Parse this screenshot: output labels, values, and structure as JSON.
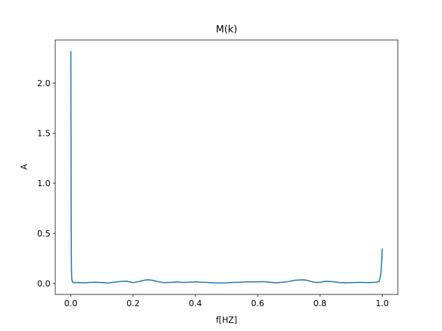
{
  "chart_data": {
    "type": "line",
    "title": "M(k)",
    "xlabel": "f[HZ]",
    "ylabel": "A",
    "xlim": [
      -0.05,
      1.05
    ],
    "ylim": [
      -0.11,
      2.43
    ],
    "xticks": [
      0.0,
      0.2,
      0.4,
      0.6,
      0.8,
      1.0
    ],
    "xtick_labels": [
      "0.0",
      "0.2",
      "0.4",
      "0.6",
      "0.8",
      "1.0"
    ],
    "yticks": [
      0.0,
      0.5,
      1.0,
      1.5,
      2.0
    ],
    "ytick_labels": [
      "0.0",
      "0.5",
      "1.0",
      "1.5",
      "2.0"
    ],
    "grid": false,
    "series": [
      {
        "color": "#1f77b4",
        "x": [
          0.0,
          0.0005,
          0.001,
          0.0015,
          0.002,
          0.003,
          0.005,
          0.01,
          0.02,
          0.04,
          0.06,
          0.08,
          0.1,
          0.12,
          0.14,
          0.16,
          0.18,
          0.2,
          0.22,
          0.24,
          0.25,
          0.26,
          0.28,
          0.3,
          0.32,
          0.34,
          0.36,
          0.38,
          0.4,
          0.42,
          0.44,
          0.46,
          0.48,
          0.5,
          0.52,
          0.54,
          0.56,
          0.58,
          0.6,
          0.62,
          0.64,
          0.66,
          0.68,
          0.7,
          0.72,
          0.74,
          0.75,
          0.76,
          0.78,
          0.8,
          0.82,
          0.84,
          0.86,
          0.88,
          0.9,
          0.92,
          0.94,
          0.96,
          0.98,
          0.99,
          0.995,
          0.998,
          1.0
        ],
        "y": [
          2.32,
          1.6,
          0.8,
          0.36,
          0.15,
          0.05,
          0.015,
          0.008,
          0.01,
          0.006,
          0.01,
          0.012,
          0.008,
          0.004,
          0.012,
          0.02,
          0.022,
          0.008,
          0.02,
          0.034,
          0.036,
          0.032,
          0.018,
          0.008,
          0.01,
          0.016,
          0.01,
          0.012,
          0.016,
          0.012,
          0.01,
          0.006,
          0.004,
          0.006,
          0.01,
          0.012,
          0.015,
          0.016,
          0.016,
          0.018,
          0.012,
          0.006,
          0.012,
          0.02,
          0.032,
          0.036,
          0.035,
          0.03,
          0.012,
          0.01,
          0.022,
          0.018,
          0.01,
          0.006,
          0.008,
          0.01,
          0.01,
          0.008,
          0.012,
          0.02,
          0.08,
          0.2,
          0.35
        ]
      }
    ]
  }
}
